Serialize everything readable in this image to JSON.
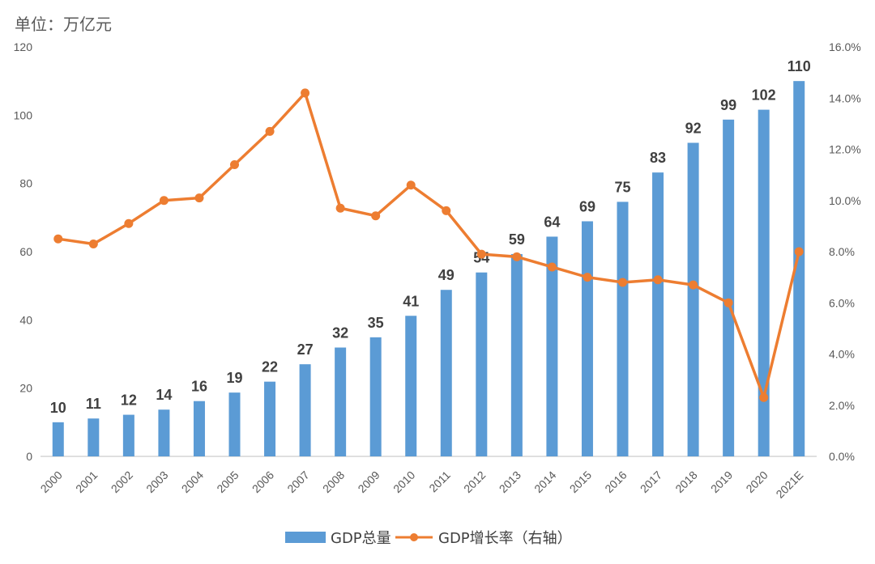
{
  "unit_label": "单位：万亿元",
  "colors": {
    "bar": "#5B9BD5",
    "line": "#ED7D31",
    "axis": "#BFBFBF",
    "text": "#595959"
  },
  "chart_data": {
    "type": "bar",
    "categories": [
      "2000",
      "2001",
      "2002",
      "2003",
      "2004",
      "2005",
      "2006",
      "2007",
      "2008",
      "2009",
      "2010",
      "2011",
      "2012",
      "2013",
      "2014",
      "2015",
      "2016",
      "2017",
      "2018",
      "2019",
      "2020",
      "2021E"
    ],
    "series": [
      {
        "name": "GDP总量",
        "type": "bar",
        "axis": "left",
        "values": [
          10.0,
          11.1,
          12.2,
          13.7,
          16.2,
          18.7,
          21.9,
          27.0,
          31.9,
          34.9,
          41.2,
          48.8,
          53.9,
          59.3,
          64.4,
          68.9,
          74.6,
          83.2,
          91.9,
          98.7,
          101.6,
          110.0
        ],
        "labels": [
          "10",
          "11",
          "12",
          "14",
          "16",
          "19",
          "22",
          "27",
          "32",
          "35",
          "41",
          "49",
          "54",
          "59",
          "64",
          "69",
          "75",
          "83",
          "92",
          "99",
          "102",
          "110"
        ]
      },
      {
        "name": "GDP增长率（右轴）",
        "type": "line",
        "axis": "right",
        "values": [
          8.5,
          8.3,
          9.1,
          10.0,
          10.1,
          11.4,
          12.7,
          14.2,
          9.7,
          9.4,
          10.6,
          9.6,
          7.9,
          7.8,
          7.4,
          7.0,
          6.8,
          6.9,
          6.7,
          6.0,
          2.3,
          8.0
        ]
      }
    ],
    "ylim_left": [
      0,
      120
    ],
    "yticks_left": [
      "0",
      "20",
      "40",
      "60",
      "80",
      "100",
      "120"
    ],
    "ylim_right": [
      0,
      16
    ],
    "yticks_right": [
      "0.0%",
      "2.0%",
      "4.0%",
      "6.0%",
      "8.0%",
      "10.0%",
      "12.0%",
      "14.0%",
      "16.0%"
    ],
    "grid": false,
    "legend_position": "bottom"
  }
}
